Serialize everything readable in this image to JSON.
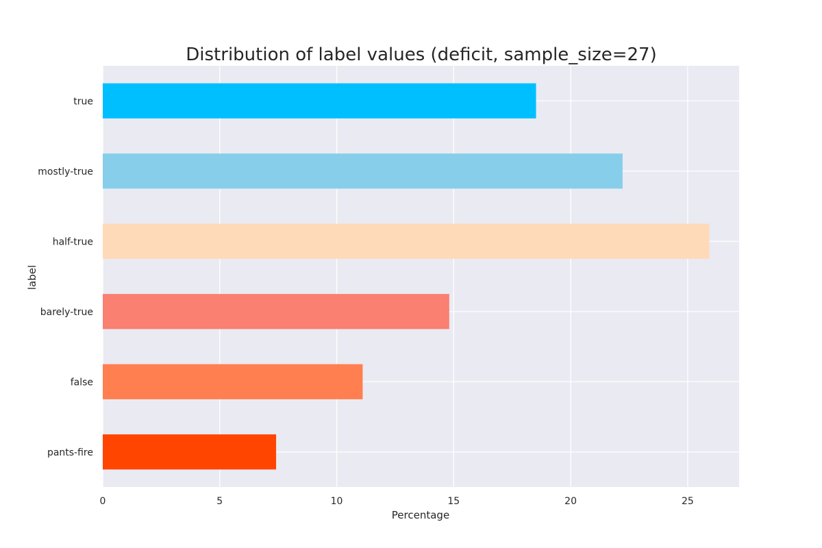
{
  "chart_data": {
    "type": "bar",
    "orientation": "horizontal",
    "title": "Distribution of label values (deficit, sample_size=27)",
    "xlabel": "Percentage",
    "ylabel": "label",
    "xlim": [
      0,
      27.2
    ],
    "xticks": [
      0,
      5,
      10,
      15,
      20,
      25
    ],
    "grid": true,
    "background": "#EAEAF2",
    "categories": [
      "true",
      "mostly-true",
      "half-true",
      "barely-true",
      "false",
      "pants-fire"
    ],
    "values": [
      18.52,
      22.22,
      25.93,
      14.81,
      11.11,
      7.41
    ],
    "colors": [
      "#00BFFF",
      "#87CEEB",
      "#FFDAB9",
      "#FA8072",
      "#FF7F50",
      "#FF4500"
    ]
  }
}
